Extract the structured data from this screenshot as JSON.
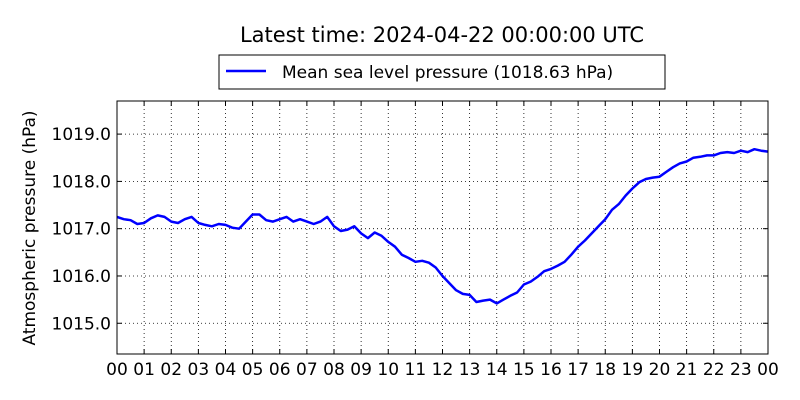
{
  "chart_data": {
    "type": "line",
    "title": "Latest time: 2024-04-22 00:00:00 UTC",
    "ylabel": "Atmospheric pressure (hPa)",
    "xlabel": "",
    "xlim": [
      0,
      24
    ],
    "ylim": [
      1014.35,
      1019.7
    ],
    "grid": true,
    "legend_position": "top-center",
    "x_ticks": [
      "00",
      "01",
      "02",
      "03",
      "04",
      "05",
      "06",
      "07",
      "08",
      "09",
      "10",
      "11",
      "12",
      "13",
      "14",
      "15",
      "16",
      "17",
      "18",
      "19",
      "20",
      "21",
      "22",
      "23",
      "00"
    ],
    "y_ticks": [
      {
        "value": 1015.0,
        "label": "1015.0"
      },
      {
        "value": 1016.0,
        "label": "1016.0"
      },
      {
        "value": 1017.0,
        "label": "1017.0"
      },
      {
        "value": 1018.0,
        "label": "1018.0"
      },
      {
        "value": 1019.0,
        "label": "1019.0"
      }
    ],
    "series": [
      {
        "name": "Mean sea level pressure (1018.63 hPa)",
        "color": "#0000ff",
        "x": [
          0,
          0.25,
          0.5,
          0.75,
          1.0,
          1.25,
          1.5,
          1.75,
          2.0,
          2.25,
          2.5,
          2.75,
          3.0,
          3.25,
          3.5,
          3.75,
          4.0,
          4.25,
          4.5,
          4.75,
          5.0,
          5.25,
          5.5,
          5.75,
          6.0,
          6.25,
          6.5,
          6.75,
          7.0,
          7.25,
          7.5,
          7.75,
          8.0,
          8.25,
          8.5,
          8.75,
          9.0,
          9.25,
          9.5,
          9.75,
          10.0,
          10.25,
          10.5,
          10.75,
          11.0,
          11.25,
          11.5,
          11.75,
          12.0,
          12.25,
          12.5,
          12.75,
          13.0,
          13.25,
          13.5,
          13.75,
          14.0,
          14.25,
          14.5,
          14.75,
          15.0,
          15.25,
          15.5,
          15.75,
          16.0,
          16.25,
          16.5,
          16.75,
          17.0,
          17.25,
          17.5,
          17.75,
          18.0,
          18.25,
          18.5,
          18.75,
          19.0,
          19.25,
          19.5,
          19.75,
          20.0,
          20.25,
          20.5,
          20.75,
          21.0,
          21.25,
          21.5,
          21.75,
          22.0,
          22.25,
          22.5,
          22.75,
          23.0,
          23.25,
          23.5,
          23.75,
          24.0
        ],
        "y": [
          1017.25,
          1017.2,
          1017.18,
          1017.1,
          1017.12,
          1017.22,
          1017.28,
          1017.25,
          1017.15,
          1017.12,
          1017.2,
          1017.25,
          1017.12,
          1017.08,
          1017.05,
          1017.1,
          1017.08,
          1017.02,
          1017.0,
          1017.15,
          1017.3,
          1017.3,
          1017.18,
          1017.15,
          1017.2,
          1017.25,
          1017.15,
          1017.2,
          1017.15,
          1017.1,
          1017.15,
          1017.25,
          1017.05,
          1016.95,
          1016.98,
          1017.05,
          1016.9,
          1016.8,
          1016.92,
          1016.85,
          1016.72,
          1016.62,
          1016.45,
          1016.38,
          1016.3,
          1016.32,
          1016.28,
          1016.18,
          1016.0,
          1015.85,
          1015.7,
          1015.62,
          1015.6,
          1015.45,
          1015.48,
          1015.5,
          1015.42,
          1015.5,
          1015.58,
          1015.65,
          1015.82,
          1015.88,
          1015.98,
          1016.1,
          1016.15,
          1016.22,
          1016.3,
          1016.45,
          1016.62,
          1016.75,
          1016.9,
          1017.05,
          1017.2,
          1017.4,
          1017.52,
          1017.7,
          1017.85,
          1017.98,
          1018.05,
          1018.08,
          1018.1,
          1018.2,
          1018.3,
          1018.38,
          1018.42,
          1018.5,
          1018.52,
          1018.55,
          1018.55,
          1018.6,
          1018.62,
          1018.6,
          1018.65,
          1018.62,
          1018.68,
          1018.65,
          1018.63
        ]
      }
    ]
  }
}
